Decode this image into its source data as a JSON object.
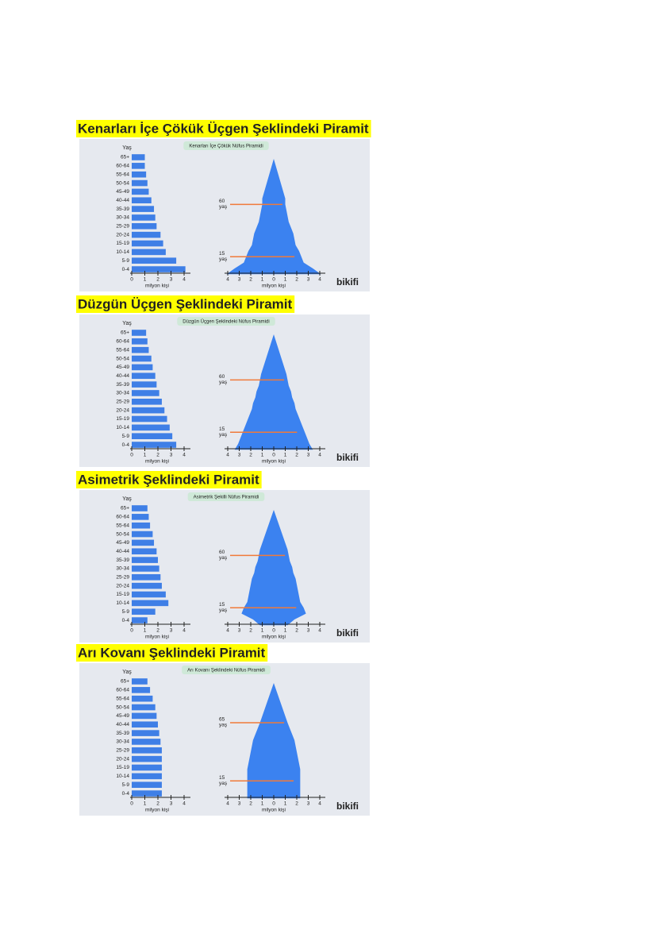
{
  "headings": [
    "Kenarları İçe Çökük Üçgen Şeklindeki Piramit",
    "Düzgün Üçgen Şeklindeki Piramit",
    "Asimetrik Şeklindeki Piramit",
    "Arı Kovanı Şeklindeki Piramit"
  ],
  "chart_data": [
    {
      "type": "bar",
      "title": "Kenarları İçe Çökük Nüfus Piramidi",
      "y_label": "Yaş",
      "x_label": "milyon kişi",
      "color": "#3f7fe6",
      "categories": [
        "65+",
        "60-64",
        "55-64",
        "50-54",
        "45-49",
        "40-44",
        "35-39",
        "30-34",
        "25-29",
        "20-24",
        "15-19",
        "10-14",
        "5-9",
        "0-4"
      ],
      "values": [
        1.0,
        1.0,
        1.1,
        1.2,
        1.3,
        1.5,
        1.7,
        1.8,
        1.9,
        2.2,
        2.4,
        2.6,
        3.4,
        4.1
      ],
      "xlim": [
        0,
        4
      ],
      "xticks": [
        0,
        1,
        2,
        3,
        4
      ],
      "pyramid_xlim": [
        -4,
        4
      ],
      "pyramid_xticks": [
        {
          "value": -4,
          "label": "4"
        },
        {
          "value": -3,
          "label": "3"
        },
        {
          "value": -2,
          "label": "2"
        },
        {
          "value": -1,
          "label": "1"
        },
        0,
        1,
        2,
        3,
        4
      ],
      "annotations": [
        {
          "age": "60",
          "unit": "yaş"
        },
        {
          "age": "15",
          "unit": "yaş"
        }
      ],
      "brand": "bikifi"
    },
    {
      "type": "bar",
      "title": "Düzgün Üçgen Şeklindeki Nüfus Piramidi",
      "y_label": "Yaş",
      "x_label": "milyon kişi",
      "color": "#3f7fe6",
      "categories": [
        "65+",
        "60-64",
        "55-64",
        "50-54",
        "45-49",
        "40-44",
        "35-39",
        "30-34",
        "25-29",
        "20-24",
        "15-19",
        "10-14",
        "5-9",
        "0-4"
      ],
      "values": [
        1.1,
        1.2,
        1.3,
        1.5,
        1.6,
        1.8,
        1.9,
        2.1,
        2.3,
        2.5,
        2.7,
        2.9,
        3.1,
        3.4
      ],
      "xlim": [
        0,
        4
      ],
      "xticks": [
        0,
        1,
        2,
        3,
        4
      ],
      "pyramid_xlim": [
        -4,
        4
      ],
      "pyramid_xticks": [
        {
          "value": -4,
          "label": "4"
        },
        {
          "value": -3,
          "label": "3"
        },
        {
          "value": -2,
          "label": "2"
        },
        {
          "value": -1,
          "label": "1"
        },
        0,
        1,
        2,
        3,
        4
      ],
      "annotations": [
        {
          "age": "60",
          "unit": "yaş"
        },
        {
          "age": "15",
          "unit": "yaş"
        }
      ],
      "brand": "bikifi"
    },
    {
      "type": "bar",
      "title": "Asimetrik Şekilli Nüfus Piramidi",
      "y_label": "Yaş",
      "x_label": "milyon kişi",
      "color": "#3f7fe6",
      "categories": [
        "65+",
        "60-64",
        "55-64",
        "50-54",
        "45-49",
        "40-44",
        "35-39",
        "30-34",
        "25-29",
        "20-24",
        "15-19",
        "10-14",
        "5-9",
        "0-4"
      ],
      "values": [
        1.2,
        1.3,
        1.4,
        1.6,
        1.7,
        1.9,
        2.0,
        2.1,
        2.2,
        2.3,
        2.6,
        2.8,
        1.8,
        1.2
      ],
      "xlim": [
        0,
        4
      ],
      "xticks": [
        0,
        1,
        2,
        3,
        4
      ],
      "pyramid_xlim": [
        -4,
        4
      ],
      "pyramid_xticks": [
        {
          "value": -4,
          "label": "4"
        },
        {
          "value": -3,
          "label": "3"
        },
        {
          "value": -2,
          "label": "2"
        },
        {
          "value": -1,
          "label": "1"
        },
        0,
        1,
        2,
        3,
        4
      ],
      "annotations": [
        {
          "age": "60",
          "unit": "yaş"
        },
        {
          "age": "15",
          "unit": "yaş"
        }
      ],
      "brand": "bikifi"
    },
    {
      "type": "bar",
      "title": "Arı Kovanı Şeklindeki Nüfus Piramidi",
      "y_label": "Yaş",
      "x_label": "milyon kişi",
      "color": "#3f7fe6",
      "categories": [
        "65+",
        "60-64",
        "55-64",
        "50-54",
        "45-49",
        "40-44",
        "35-39",
        "30-34",
        "25-29",
        "20-24",
        "15-19",
        "10-14",
        "5-9",
        "0-4"
      ],
      "values": [
        1.2,
        1.4,
        1.6,
        1.8,
        1.9,
        2.0,
        2.1,
        2.2,
        2.3,
        2.3,
        2.3,
        2.3,
        2.3,
        2.3
      ],
      "xlim": [
        0,
        4
      ],
      "xticks": [
        0,
        1,
        2,
        3,
        4
      ],
      "pyramid_xlim": [
        -4,
        4
      ],
      "pyramid_xticks": [
        {
          "value": -4,
          "label": "4"
        },
        {
          "value": -3,
          "label": "3"
        },
        {
          "value": -2,
          "label": "2"
        },
        {
          "value": -1,
          "label": "1"
        },
        0,
        1,
        2,
        3,
        4
      ],
      "annotations": [
        {
          "age": "65",
          "unit": "yaş"
        },
        {
          "age": "15",
          "unit": "yaş"
        }
      ],
      "brand": "bikifi"
    }
  ]
}
